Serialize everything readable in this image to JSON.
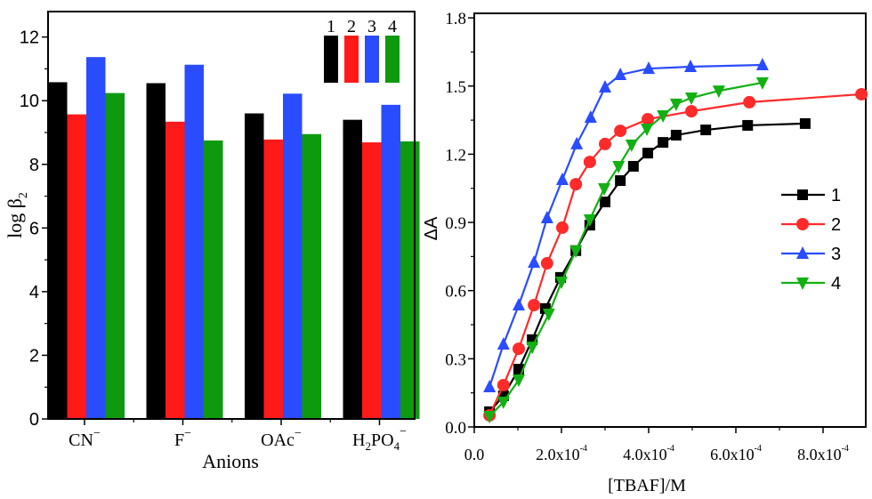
{
  "chart_data": [
    {
      "type": "bar",
      "title": "",
      "xlabel": "Anions",
      "ylabel": "log β",
      "ylabel_subscript": "2",
      "ylim": [
        0,
        12.8
      ],
      "yticks": [
        0,
        2,
        4,
        6,
        8,
        10,
        12
      ],
      "ytick_labels": [
        "0",
        "2",
        "4",
        "6",
        "8",
        "10",
        "12"
      ],
      "grid": false,
      "legend_position": "top-right",
      "categories": [
        {
          "base": "CN",
          "sub": "",
          "mid": "",
          "sub2": "",
          "sup": "−"
        },
        {
          "base": "F",
          "sub": "",
          "mid": "",
          "sub2": "",
          "sup": "−"
        },
        {
          "base": "OAc",
          "sub": "",
          "mid": "",
          "sub2": "",
          "sup": "−"
        },
        {
          "base": "H",
          "sub": "2",
          "mid": "PO",
          "sub2": "4",
          "sup": "−"
        }
      ],
      "category_labels": [
        "CN−",
        "F−",
        "OAc−",
        "H2PO4−"
      ],
      "series": [
        {
          "name": "1",
          "color": "#000000",
          "values": [
            10.58,
            10.55,
            9.6,
            9.4
          ]
        },
        {
          "name": "2",
          "color": "#ff1a1a",
          "values": [
            9.57,
            9.34,
            8.78,
            8.69
          ]
        },
        {
          "name": "3",
          "color": "#2a4cff",
          "values": [
            11.37,
            11.13,
            10.22,
            9.87
          ]
        },
        {
          "name": "4",
          "color": "#0e9a0e",
          "values": [
            10.24,
            8.75,
            8.95,
            8.72
          ]
        }
      ]
    },
    {
      "type": "line",
      "title": "",
      "xlabel": "[TBAF]/M",
      "ylabel": "ΔA",
      "xlim": [
        0,
        0.0009
      ],
      "ylim": [
        0,
        1.8
      ],
      "xticks": [
        0,
        0.0002,
        0.0004,
        0.0006,
        0.0008
      ],
      "xtick_labels": [
        {
          "mant": "0.0",
          "exp": ""
        },
        {
          "mant": "2.0x10",
          "exp": "-4"
        },
        {
          "mant": "4.0x10",
          "exp": "-4"
        },
        {
          "mant": "6.0x10",
          "exp": "-4"
        },
        {
          "mant": "8.0x10",
          "exp": "-4"
        }
      ],
      "yticks": [
        0,
        0.3,
        0.6,
        0.9,
        1.2,
        1.5,
        1.8
      ],
      "ytick_labels": [
        "0.0",
        "0.3",
        "0.6",
        "0.9",
        "1.2",
        "1.5",
        "1.8"
      ],
      "grid": false,
      "legend_position": "center-right",
      "series": [
        {
          "name": "1",
          "color": "#000000",
          "marker": "square",
          "x": [
            3.5e-05,
            6.7e-05,
            0.000102,
            0.000133,
            0.000163,
            0.000198,
            0.000233,
            0.000265,
            0.0003,
            0.000335,
            0.000365,
            0.000398,
            0.000433,
            0.000463,
            0.000531,
            0.000627,
            0.000759
          ],
          "y": [
            0.067,
            0.137,
            0.254,
            0.384,
            0.521,
            0.658,
            0.776,
            0.888,
            0.99,
            1.084,
            1.147,
            1.205,
            1.252,
            1.284,
            1.307,
            1.327,
            1.335
          ]
        },
        {
          "name": "2",
          "color": "#ff2a2a",
          "marker": "circle",
          "x": [
            3.5e-05,
            6.7e-05,
            0.000102,
            0.000137,
            0.000167,
            0.000202,
            0.000233,
            0.000265,
            0.0003,
            0.000335,
            0.000398,
            0.000498,
            0.000631,
            0.000888
          ],
          "y": [
            0.051,
            0.184,
            0.344,
            0.536,
            0.72,
            0.877,
            1.068,
            1.166,
            1.245,
            1.303,
            1.354,
            1.389,
            1.429,
            1.464
          ]
        },
        {
          "name": "3",
          "color": "#2a4cff",
          "marker": "triangle-up",
          "x": [
            3.5e-05,
            6.7e-05,
            0.000102,
            0.000137,
            0.000167,
            0.000202,
            0.000235,
            0.000267,
            0.0003,
            0.000335,
            0.0004,
            0.000496,
            0.000661
          ],
          "y": [
            0.176,
            0.364,
            0.536,
            0.724,
            0.92,
            1.088,
            1.245,
            1.362,
            1.495,
            1.55,
            1.577,
            1.585,
            1.593
          ]
        },
        {
          "name": "4",
          "color": "#12b012",
          "marker": "triangle-down",
          "x": [
            3.5e-05,
            6.7e-05,
            0.000102,
            0.000133,
            0.000171,
            0.0002,
            0.000233,
            0.000265,
            0.000298,
            0.000331,
            0.000361,
            0.000396,
            0.000433,
            0.000463,
            0.000498,
            0.000561,
            0.000661
          ],
          "y": [
            0.047,
            0.11,
            0.207,
            0.352,
            0.497,
            0.638,
            0.775,
            0.912,
            1.049,
            1.147,
            1.241,
            1.311,
            1.37,
            1.421,
            1.448,
            1.479,
            1.515
          ]
        }
      ]
    }
  ]
}
